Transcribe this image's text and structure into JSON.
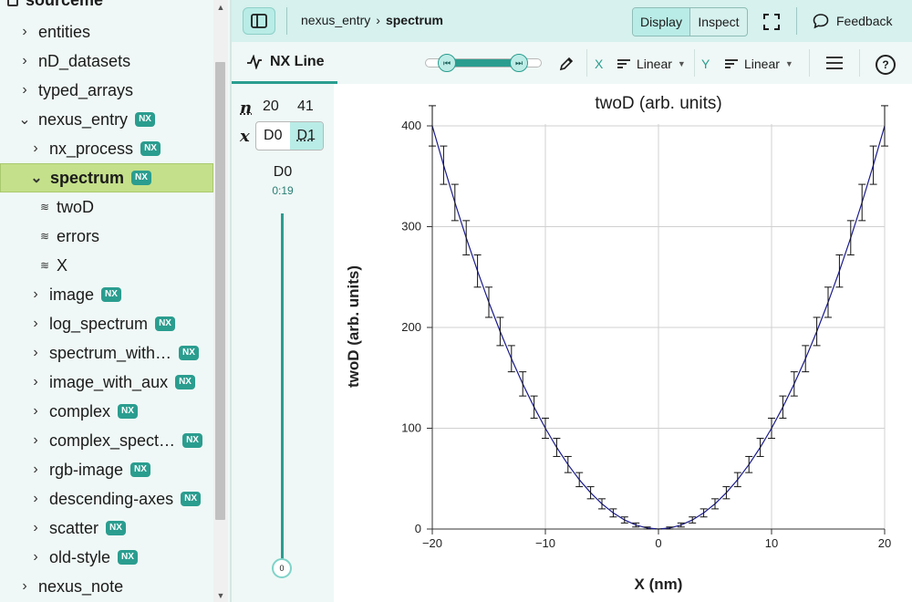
{
  "sidebar": {
    "root_label": "sourceme",
    "items": [
      {
        "label": "entities",
        "level": 0,
        "expanded": false,
        "nx": false,
        "type": "group",
        "selected": false
      },
      {
        "label": "nD_datasets",
        "level": 0,
        "expanded": false,
        "nx": false,
        "type": "group",
        "selected": false
      },
      {
        "label": "typed_arrays",
        "level": 0,
        "expanded": false,
        "nx": false,
        "type": "group",
        "selected": false
      },
      {
        "label": "nexus_entry",
        "level": 0,
        "expanded": true,
        "nx": true,
        "type": "group",
        "selected": false
      },
      {
        "label": "nx_process",
        "level": 1,
        "expanded": false,
        "nx": true,
        "type": "group",
        "selected": false
      },
      {
        "label": "spectrum",
        "level": 1,
        "expanded": true,
        "nx": true,
        "type": "group",
        "selected": true
      },
      {
        "label": "twoD",
        "level": 2,
        "nx": false,
        "type": "dataset",
        "selected": false
      },
      {
        "label": "errors",
        "level": 2,
        "nx": false,
        "type": "dataset",
        "selected": false
      },
      {
        "label": "X",
        "level": 2,
        "nx": false,
        "type": "dataset",
        "selected": false
      },
      {
        "label": "image",
        "level": 1,
        "expanded": false,
        "nx": true,
        "type": "group",
        "selected": false
      },
      {
        "label": "log_spectrum",
        "level": 1,
        "expanded": false,
        "nx": true,
        "type": "group",
        "selected": false
      },
      {
        "label": "spectrum_with…",
        "level": 1,
        "expanded": false,
        "nx": true,
        "type": "group",
        "selected": false
      },
      {
        "label": "image_with_aux",
        "level": 1,
        "expanded": false,
        "nx": true,
        "type": "group",
        "selected": false
      },
      {
        "label": "complex",
        "level": 1,
        "expanded": false,
        "nx": true,
        "type": "group",
        "selected": false
      },
      {
        "label": "complex_spect…",
        "level": 1,
        "expanded": false,
        "nx": true,
        "type": "group",
        "selected": false
      },
      {
        "label": "rgb-image",
        "level": 1,
        "expanded": false,
        "nx": true,
        "type": "group",
        "selected": false
      },
      {
        "label": "descending-axes",
        "level": 1,
        "expanded": false,
        "nx": true,
        "type": "group",
        "selected": false
      },
      {
        "label": "scatter",
        "level": 1,
        "expanded": false,
        "nx": true,
        "type": "group",
        "selected": false
      },
      {
        "label": "old-style",
        "level": 1,
        "expanded": false,
        "nx": true,
        "type": "group",
        "selected": false
      },
      {
        "label": "nexus_note",
        "level": 0,
        "expanded": false,
        "nx": false,
        "type": "group",
        "selected": false
      }
    ],
    "nx_badge": "NX"
  },
  "topbar": {
    "breadcrumb_parent": "nexus_entry",
    "breadcrumb_current": "spectrum",
    "modes": [
      "Display",
      "Inspect"
    ],
    "active_mode": "Display",
    "feedback_label": "Feedback"
  },
  "toolbar": {
    "vis_tab_label": "NX Line",
    "x_axis_label": "X",
    "x_scale": "Linear",
    "y_axis_label": "Y",
    "y_scale": "Linear"
  },
  "dims": {
    "n_symbol": "n",
    "sizes": [
      "20",
      "41"
    ],
    "x_symbol": "x",
    "buttons": [
      "D0",
      "D1"
    ],
    "active_button": "D1",
    "slider_label": "D0",
    "slider_range": "0:19",
    "slider_value": "0"
  },
  "chart_data": {
    "type": "line",
    "title": "twoD (arb. units)",
    "xlabel": "X (nm)",
    "ylabel": "twoD (arb. units)",
    "xlim": [
      -20,
      20
    ],
    "ylim": [
      0,
      400
    ],
    "x_ticks": [
      "−20",
      "−10",
      "0",
      "10",
      "20"
    ],
    "y_ticks": [
      "0",
      "100",
      "200",
      "300",
      "400"
    ],
    "grid": true,
    "error_bars": true,
    "series_color": "#1a1a8c",
    "x": [
      -20,
      -19,
      -18,
      -17,
      -16,
      -15,
      -14,
      -13,
      -12,
      -11,
      -10,
      -9,
      -8,
      -7,
      -6,
      -5,
      -4,
      -3,
      -2,
      -1,
      0,
      1,
      2,
      3,
      4,
      5,
      6,
      7,
      8,
      9,
      10,
      11,
      12,
      13,
      14,
      15,
      16,
      17,
      18,
      19,
      20
    ],
    "y": [
      400,
      361,
      324,
      289,
      256,
      225,
      196,
      169,
      144,
      121,
      100,
      81,
      64,
      49,
      36,
      25,
      16,
      9,
      4,
      1,
      0,
      1,
      4,
      9,
      16,
      25,
      36,
      49,
      64,
      81,
      100,
      121,
      144,
      169,
      196,
      225,
      256,
      289,
      324,
      361,
      400
    ],
    "errors": [
      20,
      19,
      18,
      17,
      16,
      15,
      14,
      13,
      12,
      11,
      10,
      9,
      8,
      7,
      6,
      5,
      4,
      3,
      2,
      1,
      0,
      1,
      2,
      3,
      4,
      5,
      6,
      7,
      8,
      9,
      10,
      11,
      12,
      13,
      14,
      15,
      16,
      17,
      18,
      19,
      20
    ]
  },
  "colors": {
    "accent": "#2a9d8f",
    "selected_row": "#c4e08a",
    "toolbar_bg": "#d6f1ee",
    "panel_bg": "#eff8f6"
  }
}
